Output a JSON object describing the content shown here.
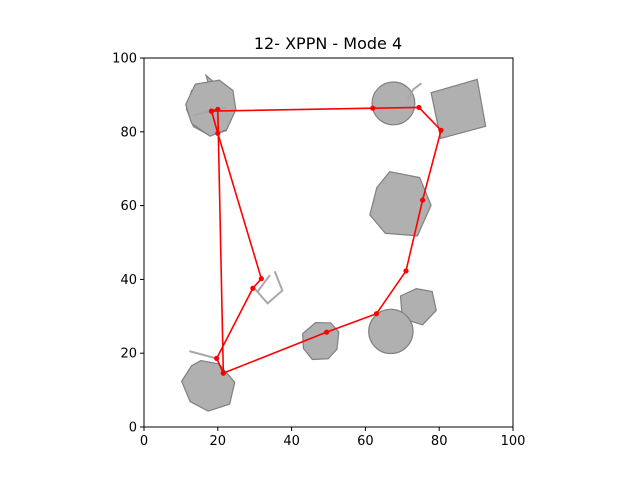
{
  "chart_data": {
    "type": "scatter",
    "title": "12- XPPN - Mode 4",
    "xlabel": "",
    "ylabel": "",
    "xlim": [
      0,
      100
    ],
    "ylim": [
      0,
      100
    ],
    "xticks": [
      0,
      20,
      40,
      60,
      80,
      100
    ],
    "yticks": [
      0,
      20,
      40,
      60,
      80,
      100
    ],
    "grid": false,
    "colors": {
      "path": "#ff0000",
      "obstacle_fill": "#b0b0b0",
      "obstacle_edge": "#808080",
      "segment": "#a8a8a8"
    },
    "obstacles": [
      {
        "shape": "polygon",
        "points": [
          [
            16.8,
            95.3
          ],
          [
            21.2,
            91.5
          ],
          [
            23.3,
            87.4
          ],
          [
            22.3,
            80.3
          ],
          [
            17.8,
            79.0
          ],
          [
            13.4,
            81.4
          ],
          [
            11.5,
            86.2
          ],
          [
            12.9,
            91.2
          ],
          [
            17.7,
            92.3
          ]
        ]
      },
      {
        "shape": "polygon",
        "points": [
          [
            20.4,
            94.0
          ],
          [
            24.1,
            91.2
          ],
          [
            24.9,
            86.0
          ],
          [
            22.4,
            80.6
          ],
          [
            17.9,
            78.8
          ],
          [
            12.9,
            82.3
          ],
          [
            11.3,
            87.4
          ],
          [
            13.9,
            92.9
          ]
        ]
      },
      {
        "shape": "circle",
        "cx": 67.6,
        "cy": 87.7,
        "r": 5.8
      },
      {
        "shape": "polygon",
        "points": [
          [
            77.8,
            90.6
          ],
          [
            90.3,
            94.2
          ],
          [
            92.6,
            81.5
          ],
          [
            80.4,
            78.2
          ]
        ]
      },
      {
        "shape": "polygon",
        "points": [
          [
            66.6,
            69.2
          ],
          [
            74.7,
            67.6
          ],
          [
            77.8,
            60.1
          ],
          [
            74.1,
            51.8
          ],
          [
            65.4,
            52.5
          ],
          [
            61.2,
            57.5
          ],
          [
            63.1,
            64.9
          ]
        ]
      },
      {
        "shape": "polygon",
        "points": [
          [
            69.5,
            35.5
          ],
          [
            73.8,
            37.5
          ],
          [
            78.1,
            36.7
          ],
          [
            79.2,
            31.6
          ],
          [
            75.5,
            27.7
          ],
          [
            70.0,
            29.4
          ]
        ]
      },
      {
        "shape": "circle",
        "cx": 66.9,
        "cy": 25.9,
        "r": 6.0
      },
      {
        "shape": "polygon",
        "points": [
          [
            46.5,
            28.3
          ],
          [
            50.6,
            28.2
          ],
          [
            52.8,
            25.8
          ],
          [
            52.3,
            21.1
          ],
          [
            49.9,
            18.5
          ],
          [
            45.6,
            18.3
          ],
          [
            43.2,
            21.3
          ],
          [
            43.0,
            25.3
          ]
        ]
      },
      {
        "shape": "polygon",
        "points": [
          [
            15.4,
            18.0
          ],
          [
            20.3,
            17.1
          ],
          [
            24.6,
            12.1
          ],
          [
            23.2,
            6.2
          ],
          [
            17.4,
            4.3
          ],
          [
            12.5,
            6.9
          ],
          [
            10.2,
            12.4
          ],
          [
            12.9,
            16.6
          ]
        ]
      }
    ],
    "segments": [
      {
        "points": [
          [
            13.5,
            84.5
          ],
          [
            22.0,
            86.5
          ]
        ]
      },
      {
        "points": [
          [
            71.5,
            89.0
          ],
          [
            73.0,
            91.5
          ],
          [
            75.0,
            93.0
          ]
        ]
      },
      {
        "points": [
          [
            31.0,
            37.0
          ],
          [
            34.0,
            41.0
          ]
        ]
      },
      {
        "points": [
          [
            30.0,
            37.5
          ],
          [
            33.5,
            33.5
          ],
          [
            37.5,
            37.0
          ],
          [
            35.5,
            42.0
          ]
        ]
      },
      {
        "points": [
          [
            12.5,
            20.5
          ],
          [
            20.0,
            18.5
          ]
        ]
      }
    ],
    "path": {
      "x": [
        18.3,
        20.0,
        21.5,
        19.7,
        29.5,
        31.8,
        20.0,
        18.3,
        62.0,
        74.5,
        80.5,
        75.5,
        71.0,
        63.0,
        49.5,
        21.5
      ],
      "y": [
        85.6,
        86.1,
        14.6,
        18.6,
        37.6,
        40.2,
        79.6,
        85.6,
        86.4,
        86.6,
        80.4,
        61.5,
        42.3,
        30.7,
        25.7,
        14.6
      ]
    }
  }
}
